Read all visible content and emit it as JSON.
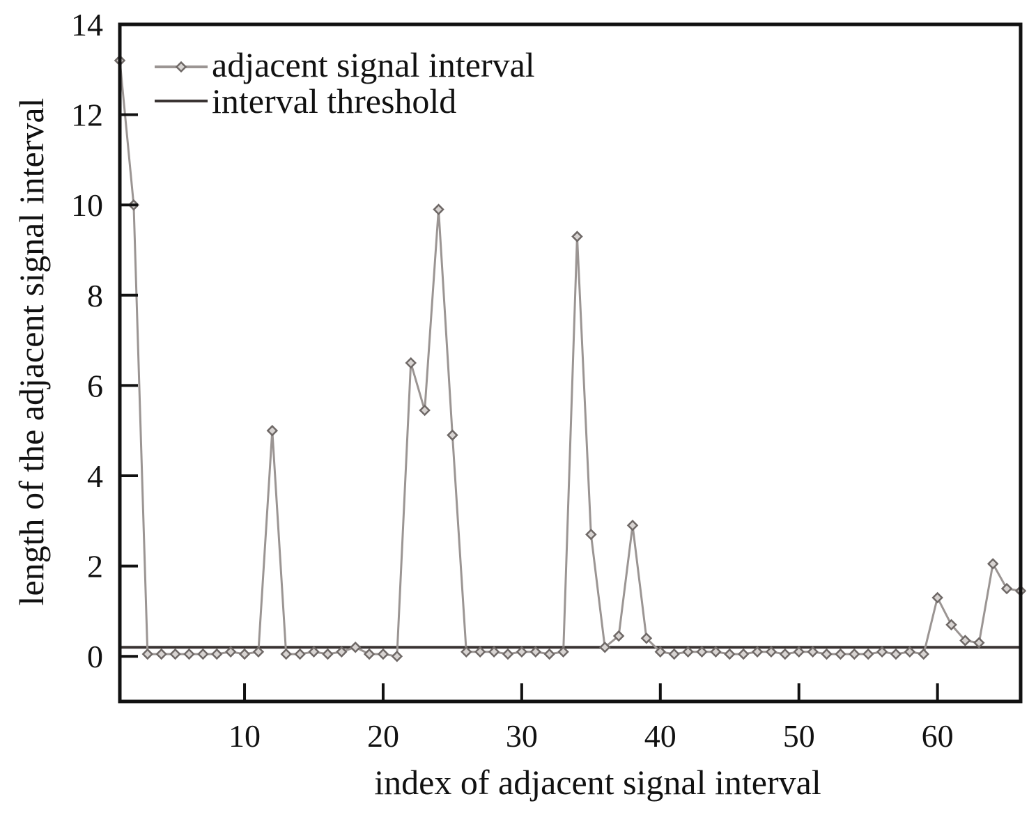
{
  "chart_data": {
    "type": "line",
    "xlabel": "index of adjacent signal interval",
    "ylabel": "length of the adjacent signal interval",
    "xlim": [
      1,
      66
    ],
    "ylim": [
      -1,
      14
    ],
    "xticks": [
      10,
      20,
      30,
      40,
      50,
      60
    ],
    "yticks": [
      0,
      2,
      4,
      6,
      8,
      10,
      12,
      14
    ],
    "grid": false,
    "legend_position": "top-left",
    "series": [
      {
        "name": "adjacent signal interval",
        "color": "#9b9593",
        "marker": "diamond",
        "x": [
          1,
          2,
          3,
          4,
          5,
          6,
          7,
          8,
          9,
          10,
          11,
          12,
          13,
          14,
          15,
          16,
          17,
          18,
          19,
          20,
          21,
          22,
          23,
          24,
          25,
          26,
          27,
          28,
          29,
          30,
          31,
          32,
          33,
          34,
          35,
          36,
          37,
          38,
          39,
          40,
          41,
          42,
          43,
          44,
          45,
          46,
          47,
          48,
          49,
          50,
          51,
          52,
          53,
          54,
          55,
          56,
          57,
          58,
          59,
          60,
          61,
          62,
          63,
          64,
          65,
          66
        ],
        "y": [
          13.2,
          10.0,
          0.05,
          0.05,
          0.05,
          0.05,
          0.05,
          0.05,
          0.1,
          0.05,
          0.1,
          5.0,
          0.05,
          0.05,
          0.1,
          0.05,
          0.1,
          0.2,
          0.05,
          0.05,
          0.0,
          6.5,
          5.45,
          9.9,
          4.9,
          0.1,
          0.1,
          0.1,
          0.05,
          0.1,
          0.1,
          0.05,
          0.1,
          9.3,
          2.7,
          0.2,
          0.45,
          2.9,
          0.4,
          0.1,
          0.05,
          0.1,
          0.1,
          0.1,
          0.05,
          0.05,
          0.1,
          0.1,
          0.05,
          0.1,
          0.1,
          0.05,
          0.05,
          0.05,
          0.05,
          0.1,
          0.05,
          0.1,
          0.05,
          1.3,
          0.7,
          0.35,
          0.3,
          2.05,
          1.5,
          1.45
        ]
      },
      {
        "name": "interval threshold",
        "color": "#3a3433",
        "value": 0.2
      }
    ]
  }
}
